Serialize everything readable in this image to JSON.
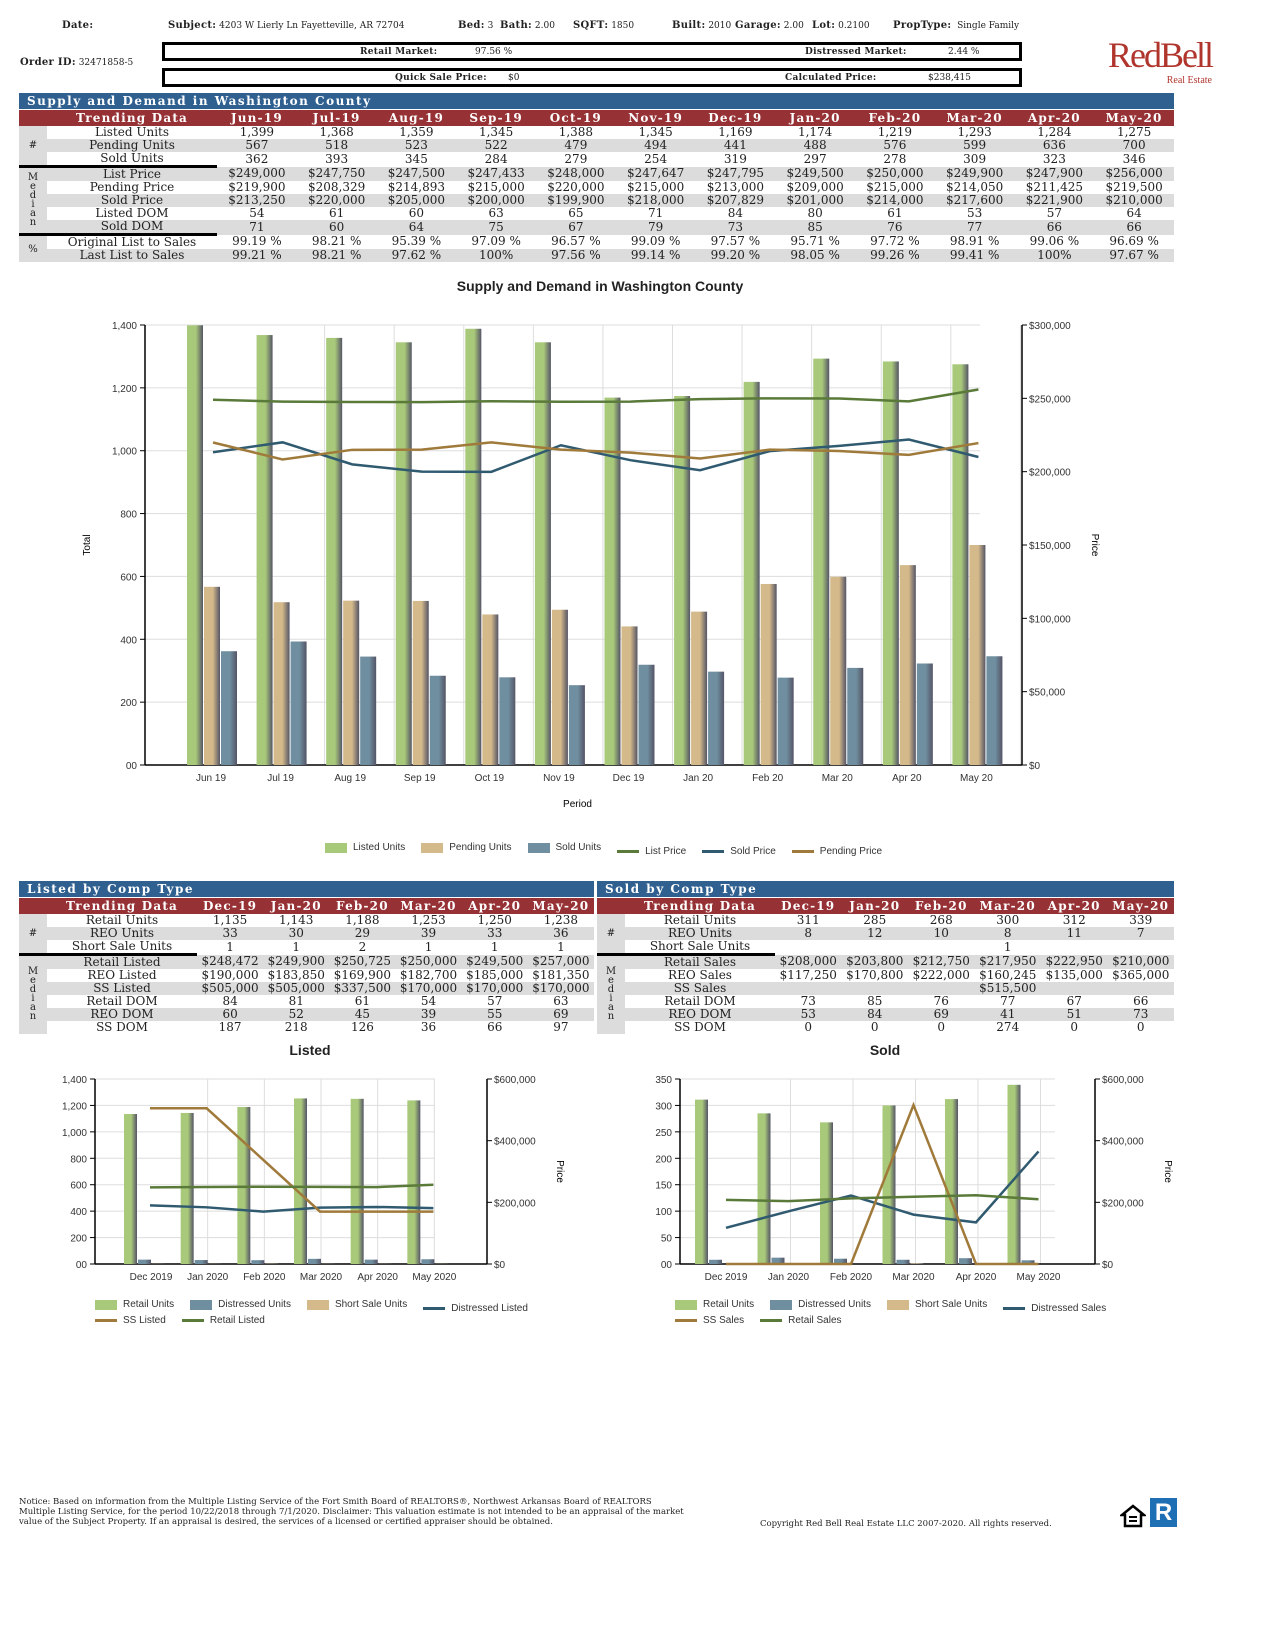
{
  "header": {
    "date_label": "Date:",
    "date_value": "",
    "subject_label": "Subject:",
    "subject_value": "4203 W Lierly Ln Fayetteville, AR 72704",
    "bed_label": "Bed:",
    "bed_value": "3",
    "bath_label": "Bath:",
    "bath_value": "2.00",
    "sqft_label": "SQFT:",
    "sqft_value": "1850",
    "built_label": "Built:",
    "built_value": "2010",
    "garage_label": "Garage:",
    "garage_value": "2.00",
    "lot_label": "Lot:",
    "lot_value": "0.2100",
    "proptype_label": "PropType:",
    "proptype_value": "Single Family",
    "order_label": "Order ID:",
    "order_value": "32471858-5",
    "retail_market_label": "Retail Market:",
    "retail_market_value": "97.56 %",
    "distressed_market_label": "Distressed Market:",
    "distressed_market_value": "2.44 %",
    "quick_sale_label": "Quick Sale Price:",
    "quick_sale_value": "$0",
    "calculated_label": "Calculated Price:",
    "calculated_value": "$238,415",
    "logo_main": "RedBell",
    "logo_sub": "Real Estate",
    "brand_color": "#b0352d"
  },
  "supply": {
    "title": "Supply and Demand in Washington County",
    "header_label": "Trending Data",
    "months": [
      "Jun-19",
      "Jul-19",
      "Aug-19",
      "Sep-19",
      "Oct-19",
      "Nov-19",
      "Dec-19",
      "Jan-20",
      "Feb-20",
      "Mar-20",
      "Apr-20",
      "May-20"
    ],
    "groups": [
      {
        "side": "#",
        "rows": [
          {
            "label": "Listed Units",
            "values": [
              "1,399",
              "1,368",
              "1,359",
              "1,345",
              "1,388",
              "1,345",
              "1,169",
              "1,174",
              "1,219",
              "1,293",
              "1,284",
              "1,275"
            ]
          },
          {
            "label": "Pending Units",
            "values": [
              "567",
              "518",
              "523",
              "522",
              "479",
              "494",
              "441",
              "488",
              "576",
              "599",
              "636",
              "700"
            ]
          },
          {
            "label": "Sold Units",
            "values": [
              "362",
              "393",
              "345",
              "284",
              "279",
              "254",
              "319",
              "297",
              "278",
              "309",
              "323",
              "346"
            ]
          }
        ]
      },
      {
        "side": "Median",
        "rows": [
          {
            "label": "List Price",
            "values": [
              "$249,000",
              "$247,750",
              "$247,500",
              "$247,433",
              "$248,000",
              "$247,647",
              "$247,795",
              "$249,500",
              "$250,000",
              "$249,900",
              "$247,900",
              "$256,000"
            ]
          },
          {
            "label": "Pending Price",
            "values": [
              "$219,900",
              "$208,329",
              "$214,893",
              "$215,000",
              "$220,000",
              "$215,000",
              "$213,000",
              "$209,000",
              "$215,000",
              "$214,050",
              "$211,425",
              "$219,500"
            ]
          },
          {
            "label": "Sold Price",
            "values": [
              "$213,250",
              "$220,000",
              "$205,000",
              "$200,000",
              "$199,900",
              "$218,000",
              "$207,829",
              "$201,000",
              "$214,000",
              "$217,600",
              "$221,900",
              "$210,000"
            ]
          },
          {
            "label": "Listed DOM",
            "values": [
              "54",
              "61",
              "60",
              "63",
              "65",
              "71",
              "84",
              "80",
              "61",
              "53",
              "57",
              "64"
            ]
          },
          {
            "label": "Sold DOM",
            "values": [
              "71",
              "60",
              "64",
              "75",
              "67",
              "79",
              "73",
              "85",
              "76",
              "77",
              "66",
              "66"
            ]
          }
        ]
      },
      {
        "side": "%",
        "rows": [
          {
            "label": "Original List to Sales",
            "values": [
              "99.19 %",
              "98.21 %",
              "95.39 %",
              "97.09 %",
              "96.57 %",
              "99.09 %",
              "97.57 %",
              "95.71 %",
              "97.72 %",
              "98.91 %",
              "99.06 %",
              "96.69 %"
            ]
          },
          {
            "label": "Last List to Sales",
            "values": [
              "99.21 %",
              "98.21 %",
              "97.62 %",
              "100%",
              "97.56 %",
              "99.14 %",
              "99.20 %",
              "98.05 %",
              "99.26 %",
              "99.41 %",
              "100%",
              "97.67 %"
            ]
          }
        ]
      }
    ]
  },
  "listed": {
    "title": "Listed by Comp Type",
    "header_label": "Trending Data",
    "months": [
      "Dec-19",
      "Jan-20",
      "Feb-20",
      "Mar-20",
      "Apr-20",
      "May-20"
    ],
    "groups": [
      {
        "side": "#",
        "rows": [
          {
            "label": "Retail Units",
            "values": [
              "1,135",
              "1,143",
              "1,188",
              "1,253",
              "1,250",
              "1,238"
            ]
          },
          {
            "label": "REO Units",
            "values": [
              "33",
              "30",
              "29",
              "39",
              "33",
              "36"
            ]
          },
          {
            "label": "Short Sale Units",
            "values": [
              "1",
              "1",
              "2",
              "1",
              "1",
              "1"
            ]
          }
        ]
      },
      {
        "side": "Median",
        "rows": [
          {
            "label": "Retail Listed",
            "values": [
              "$248,472",
              "$249,900",
              "$250,725",
              "$250,000",
              "$249,500",
              "$257,000"
            ]
          },
          {
            "label": "REO Listed",
            "values": [
              "$190,000",
              "$183,850",
              "$169,900",
              "$182,700",
              "$185,000",
              "$181,350"
            ]
          },
          {
            "label": "SS Listed",
            "values": [
              "$505,000",
              "$505,000",
              "$337,500",
              "$170,000",
              "$170,000",
              "$170,000"
            ]
          },
          {
            "label": "Retail DOM",
            "values": [
              "84",
              "81",
              "61",
              "54",
              "57",
              "63"
            ]
          },
          {
            "label": "REO DOM",
            "values": [
              "60",
              "52",
              "45",
              "39",
              "55",
              "69"
            ]
          },
          {
            "label": "SS DOM",
            "values": [
              "187",
              "218",
              "126",
              "36",
              "66",
              "97"
            ]
          }
        ]
      }
    ]
  },
  "sold": {
    "title": "Sold by Comp Type",
    "header_label": "Trending Data",
    "months": [
      "Dec-19",
      "Jan-20",
      "Feb-20",
      "Mar-20",
      "Apr-20",
      "May-20"
    ],
    "groups": [
      {
        "side": "#",
        "rows": [
          {
            "label": "Retail Units",
            "values": [
              "311",
              "285",
              "268",
              "300",
              "312",
              "339"
            ]
          },
          {
            "label": "REO Units",
            "values": [
              "8",
              "12",
              "10",
              "8",
              "11",
              "7"
            ]
          },
          {
            "label": "Short Sale Units",
            "values": [
              "",
              "",
              "",
              "1",
              "",
              ""
            ]
          }
        ]
      },
      {
        "side": "Median",
        "rows": [
          {
            "label": "Retail Sales",
            "values": [
              "$208,000",
              "$203,800",
              "$212,750",
              "$217,950",
              "$222,950",
              "$210,000"
            ]
          },
          {
            "label": "REO Sales",
            "values": [
              "$117,250",
              "$170,800",
              "$222,000",
              "$160,245",
              "$135,000",
              "$365,000"
            ]
          },
          {
            "label": "SS Sales",
            "values": [
              "",
              "",
              "",
              "$515,500",
              "",
              ""
            ]
          },
          {
            "label": "Retail DOM",
            "values": [
              "73",
              "85",
              "76",
              "77",
              "67",
              "66"
            ]
          },
          {
            "label": "REO DOM",
            "values": [
              "53",
              "84",
              "69",
              "41",
              "51",
              "73"
            ]
          },
          {
            "label": "SS DOM",
            "values": [
              "0",
              "0",
              "0",
              "274",
              "0",
              "0"
            ]
          }
        ]
      }
    ]
  },
  "chart_data": [
    {
      "type": "bar",
      "title": "Supply and Demand in Washington County",
      "xlabel": "Period",
      "ylabel": "Total",
      "y2label": "Price",
      "categories": [
        "Jun 19",
        "Jul 19",
        "Aug 19",
        "Sep 19",
        "Oct 19",
        "Nov 19",
        "Dec 19",
        "Jan 20",
        "Feb 20",
        "Mar 20",
        "Apr 20",
        "May 20"
      ],
      "ylim": [
        0,
        1400
      ],
      "yticks": [
        "00",
        "200",
        "400",
        "600",
        "800",
        "1,000",
        "1,200",
        "1,400"
      ],
      "y2lim": [
        0,
        300000
      ],
      "y2ticks": [
        "$0",
        "$50,000",
        "$100,000",
        "$150,000",
        "$200,000",
        "$250,000",
        "$300,000"
      ],
      "bars": [
        {
          "name": "Listed Units",
          "color": "#a9c97a",
          "values": [
            1399,
            1368,
            1359,
            1345,
            1388,
            1345,
            1169,
            1174,
            1219,
            1293,
            1284,
            1275
          ]
        },
        {
          "name": "Pending Units",
          "color": "#d4b98a",
          "values": [
            567,
            518,
            523,
            522,
            479,
            494,
            441,
            488,
            576,
            599,
            636,
            700
          ]
        },
        {
          "name": "Sold Units",
          "color": "#6f8fa0",
          "values": [
            362,
            393,
            345,
            284,
            279,
            254,
            319,
            297,
            278,
            309,
            323,
            346
          ]
        }
      ],
      "lines": [
        {
          "name": "List Price",
          "color": "#5a7a3a",
          "values": [
            249000,
            247750,
            247500,
            247433,
            248000,
            247647,
            247795,
            249500,
            250000,
            249900,
            247900,
            256000
          ]
        },
        {
          "name": "Sold Price",
          "color": "#2f5a70",
          "values": [
            213250,
            220000,
            205000,
            200000,
            199900,
            218000,
            207829,
            201000,
            214000,
            217600,
            221900,
            210000
          ]
        },
        {
          "name": "Pending Price",
          "color": "#a07a3a",
          "values": [
            219900,
            208329,
            214893,
            215000,
            220000,
            215000,
            213000,
            209000,
            215000,
            214050,
            211425,
            219500
          ]
        }
      ],
      "legend": "bottom",
      "grid": true
    },
    {
      "type": "bar",
      "title": "Listed",
      "y2label": "Price",
      "categories": [
        "Dec 2019",
        "Jan 2020",
        "Feb 2020",
        "Mar 2020",
        "Apr 2020",
        "May 2020"
      ],
      "ylim": [
        0,
        1400
      ],
      "yticks": [
        "00",
        "200",
        "400",
        "600",
        "800",
        "1,000",
        "1,200",
        "1,400"
      ],
      "y2lim": [
        0,
        600000
      ],
      "y2ticks": [
        "$0",
        "$200,000",
        "$400,000",
        "$600,000"
      ],
      "bars": [
        {
          "name": "Retail Units",
          "color": "#a9c97a",
          "values": [
            1135,
            1143,
            1188,
            1253,
            1250,
            1238
          ]
        },
        {
          "name": "Distressed Units",
          "color": "#6f8fa0",
          "values": [
            33,
            30,
            29,
            39,
            33,
            36
          ]
        },
        {
          "name": "Short Sale Units",
          "color": "#d4b98a",
          "values": [
            1,
            1,
            2,
            1,
            1,
            1
          ]
        }
      ],
      "lines": [
        {
          "name": "Distressed Listed",
          "color": "#2f5a70",
          "values": [
            190000,
            183850,
            169900,
            182700,
            185000,
            181350
          ]
        },
        {
          "name": "SS Listed",
          "color": "#a07a3a",
          "values": [
            505000,
            505000,
            337500,
            170000,
            170000,
            170000
          ]
        },
        {
          "name": "Retail Listed",
          "color": "#5a7a3a",
          "values": [
            248472,
            249900,
            250725,
            250000,
            249500,
            257000
          ]
        }
      ],
      "legend": "bottom",
      "grid": true
    },
    {
      "type": "bar",
      "title": "Sold",
      "y2label": "Price",
      "categories": [
        "Dec 2019",
        "Jan 2020",
        "Feb 2020",
        "Mar 2020",
        "Apr 2020",
        "May 2020"
      ],
      "ylim": [
        0,
        350
      ],
      "yticks": [
        "00",
        "50",
        "100",
        "150",
        "200",
        "250",
        "300",
        "350"
      ],
      "y2lim": [
        0,
        600000
      ],
      "y2ticks": [
        "$0",
        "$200,000",
        "$400,000",
        "$600,000"
      ],
      "bars": [
        {
          "name": "Retail Units",
          "color": "#a9c97a",
          "values": [
            311,
            285,
            268,
            300,
            312,
            339
          ]
        },
        {
          "name": "Distressed Units",
          "color": "#6f8fa0",
          "values": [
            8,
            12,
            10,
            8,
            11,
            7
          ]
        },
        {
          "name": "Short Sale Units",
          "color": "#d4b98a",
          "values": [
            0,
            0,
            0,
            1,
            0,
            0
          ]
        }
      ],
      "lines": [
        {
          "name": "Distressed Sales",
          "color": "#2f5a70",
          "values": [
            117250,
            170800,
            222000,
            160245,
            135000,
            365000
          ]
        },
        {
          "name": "SS Sales",
          "color": "#a07a3a",
          "values": [
            0,
            0,
            0,
            515500,
            0,
            0
          ]
        },
        {
          "name": "Retail Sales",
          "color": "#5a7a3a",
          "values": [
            208000,
            203800,
            212750,
            217950,
            222950,
            210000
          ]
        }
      ],
      "legend": "bottom",
      "grid": true
    }
  ],
  "footer": {
    "notice": "Notice: Based on information from the Multiple Listing Service of the Fort Smith Board of REALTORS®, Northwest Arkansas Board of REALTORS Multiple Listing Service, for the period 10/22/2018 through 7/1/2020. Disclaimer: This valuation estimate is not intended to be an appraisal of the market value of the Subject Property. If an appraisal is desired, the services of a licensed or certified appraiser should be obtained.",
    "copyright": "Copyright Red Bell Real Estate LLC 2007-2020. All rights reserved."
  }
}
